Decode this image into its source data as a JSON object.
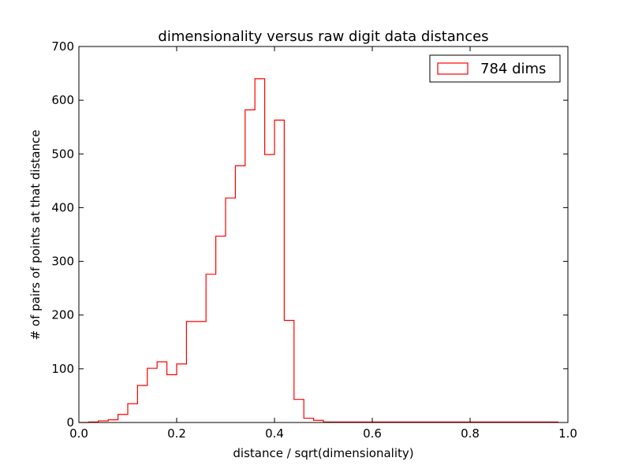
{
  "chart_data": {
    "type": "histogram-step",
    "title": "dimensionality versus raw digit data distances",
    "xlabel": "distance / sqrt(dimensionality)",
    "ylabel": "# of pairs of points at that distance",
    "xlim": [
      0.0,
      1.0
    ],
    "ylim": [
      0,
      700
    ],
    "x_ticks": [
      "0.0",
      "0.2",
      "0.4",
      "0.6",
      "0.8",
      "1.0"
    ],
    "x_tick_values": [
      0.0,
      0.2,
      0.4,
      0.6,
      0.8,
      1.0
    ],
    "y_ticks": [
      "0",
      "100",
      "200",
      "300",
      "400",
      "500",
      "600",
      "700"
    ],
    "y_tick_values": [
      0,
      100,
      200,
      300,
      400,
      500,
      600,
      700
    ],
    "grid": false,
    "legend_position": "top-right",
    "series": [
      {
        "name": "784 dims",
        "color": "#ff0000",
        "bin_width": 0.02,
        "bin_edges_start": 0.0,
        "counts": [
          0,
          1,
          3,
          5,
          15,
          35,
          69,
          101,
          113,
          89,
          109,
          188,
          188,
          276,
          347,
          418,
          478,
          582,
          640,
          499,
          563,
          190,
          43,
          8,
          4,
          1,
          1,
          1,
          1,
          1,
          1,
          1,
          1,
          1,
          1,
          1,
          1,
          1,
          1,
          1,
          1,
          1,
          1,
          1,
          1,
          1,
          1,
          1,
          1
        ]
      }
    ]
  }
}
